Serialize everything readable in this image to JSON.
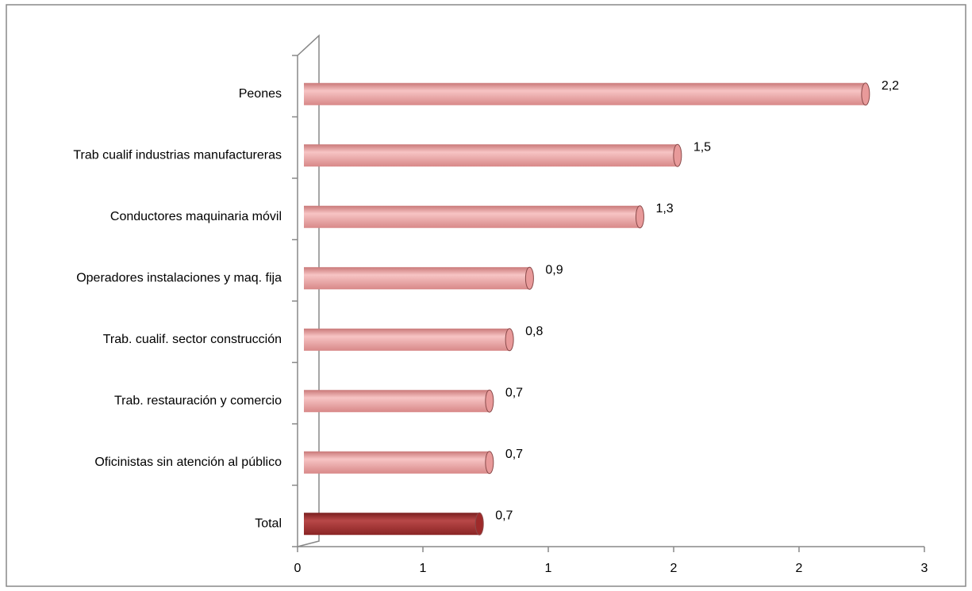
{
  "chart_data": {
    "type": "bar",
    "orientation": "horizontal",
    "categories": [
      "Peones",
      "Trab cualif industrias manufactureras",
      "Conductores maquinaria móvil",
      "Operadores instalaciones y maq. fija",
      "Trab. cualif. sector construcción",
      "Trab. restauración y comercio",
      "Oficinistas sin atención al público",
      "Total"
    ],
    "values": [
      2.24,
      1.49,
      1.34,
      0.9,
      0.82,
      0.74,
      0.74,
      0.7
    ],
    "value_labels": [
      "2,2",
      "1,5",
      "1,3",
      "0,9",
      "0,8",
      "0,7",
      "0,7",
      "0,7"
    ],
    "colors": [
      "#e89a9a",
      "#e89a9a",
      "#e89a9a",
      "#e89a9a",
      "#e89a9a",
      "#e89a9a",
      "#e89a9a",
      "#9e2a2a"
    ],
    "xlim": [
      0,
      2.5
    ],
    "xticks": [
      0,
      {
        "value": 0.5,
        "label": "1"
      },
      1,
      {
        "value": 1.5,
        "label": "2"
      },
      2,
      {
        "value": 2.5,
        "label": "3"
      }
    ]
  }
}
